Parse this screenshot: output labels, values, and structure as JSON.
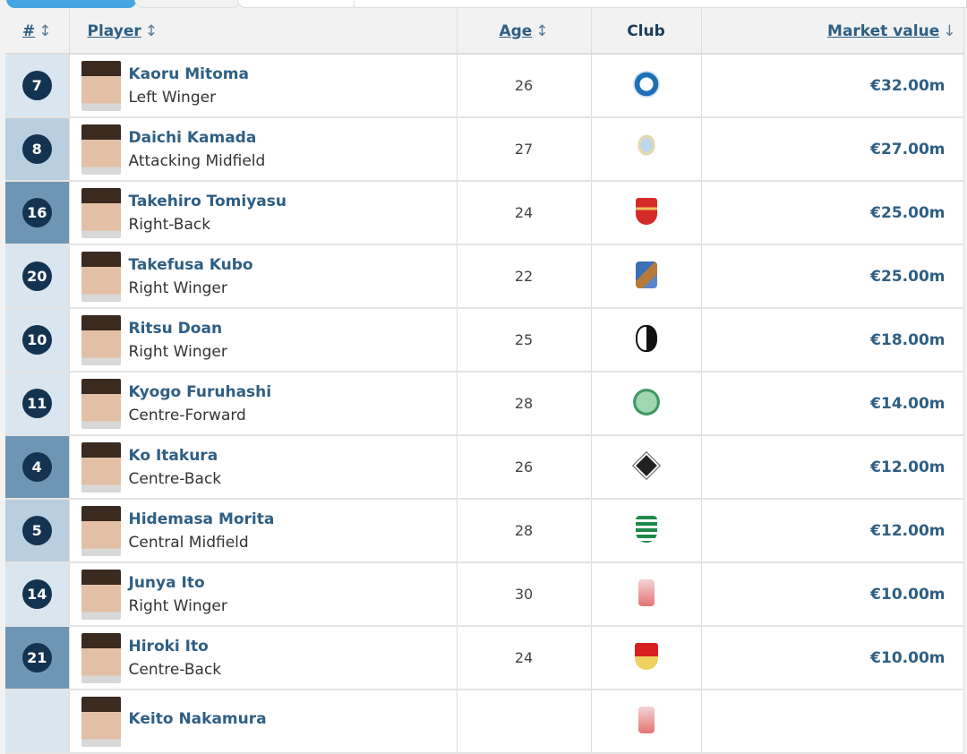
{
  "header": {
    "number": "#",
    "player": "Player",
    "age": "Age",
    "club": "Club",
    "market_value": "Market value",
    "sort_icon": "↕",
    "sort_desc_icon": "↓"
  },
  "position_colors": {
    "attack": "#d9e6f0",
    "midfield": "#b9cfdf",
    "defence": "#6e96b4"
  },
  "players": [
    {
      "number": "7",
      "name": "Kaoru Mitoma",
      "position": "Left Winger",
      "age": "26",
      "club_icon": "brighton-crest-icon",
      "value": "€32.00m",
      "group": "attack"
    },
    {
      "number": "8",
      "name": "Daichi Kamada",
      "position": "Attacking Midfield",
      "age": "27",
      "club_icon": "lazio-crest-icon",
      "value": "€27.00m",
      "group": "midfield"
    },
    {
      "number": "16",
      "name": "Takehiro Tomiyasu",
      "position": "Right-Back",
      "age": "24",
      "club_icon": "arsenal-crest-icon",
      "value": "€25.00m",
      "group": "defence"
    },
    {
      "number": "20",
      "name": "Takefusa Kubo",
      "position": "Right Winger",
      "age": "22",
      "club_icon": "real-sociedad-crest-icon",
      "value": "€25.00m",
      "group": "attack"
    },
    {
      "number": "10",
      "name": "Ritsu Doan",
      "position": "Right Winger",
      "age": "25",
      "club_icon": "freiburg-crest-icon",
      "value": "€18.00m",
      "group": "attack"
    },
    {
      "number": "11",
      "name": "Kyogo Furuhashi",
      "position": "Centre-Forward",
      "age": "28",
      "club_icon": "celtic-crest-icon",
      "value": "€14.00m",
      "group": "attack"
    },
    {
      "number": "4",
      "name": "Ko Itakura",
      "position": "Centre-Back",
      "age": "26",
      "club_icon": "gladbach-crest-icon",
      "value": "€12.00m",
      "group": "defence"
    },
    {
      "number": "5",
      "name": "Hidemasa Morita",
      "position": "Central Midfield",
      "age": "28",
      "club_icon": "sporting-crest-icon",
      "value": "€12.00m",
      "group": "midfield"
    },
    {
      "number": "14",
      "name": "Junya Ito",
      "position": "Right Winger",
      "age": "30",
      "club_icon": "reims-crest-icon",
      "value": "€10.00m",
      "group": "attack"
    },
    {
      "number": "21",
      "name": "Hiroki Ito",
      "position": "Centre-Back",
      "age": "24",
      "club_icon": "stuttgart-crest-icon",
      "value": "€10.00m",
      "group": "defence"
    },
    {
      "number": "",
      "name": "Keito Nakamura",
      "position": "",
      "age": "",
      "club_icon": "reims-crest-icon",
      "value": "",
      "group": "attack"
    }
  ]
}
